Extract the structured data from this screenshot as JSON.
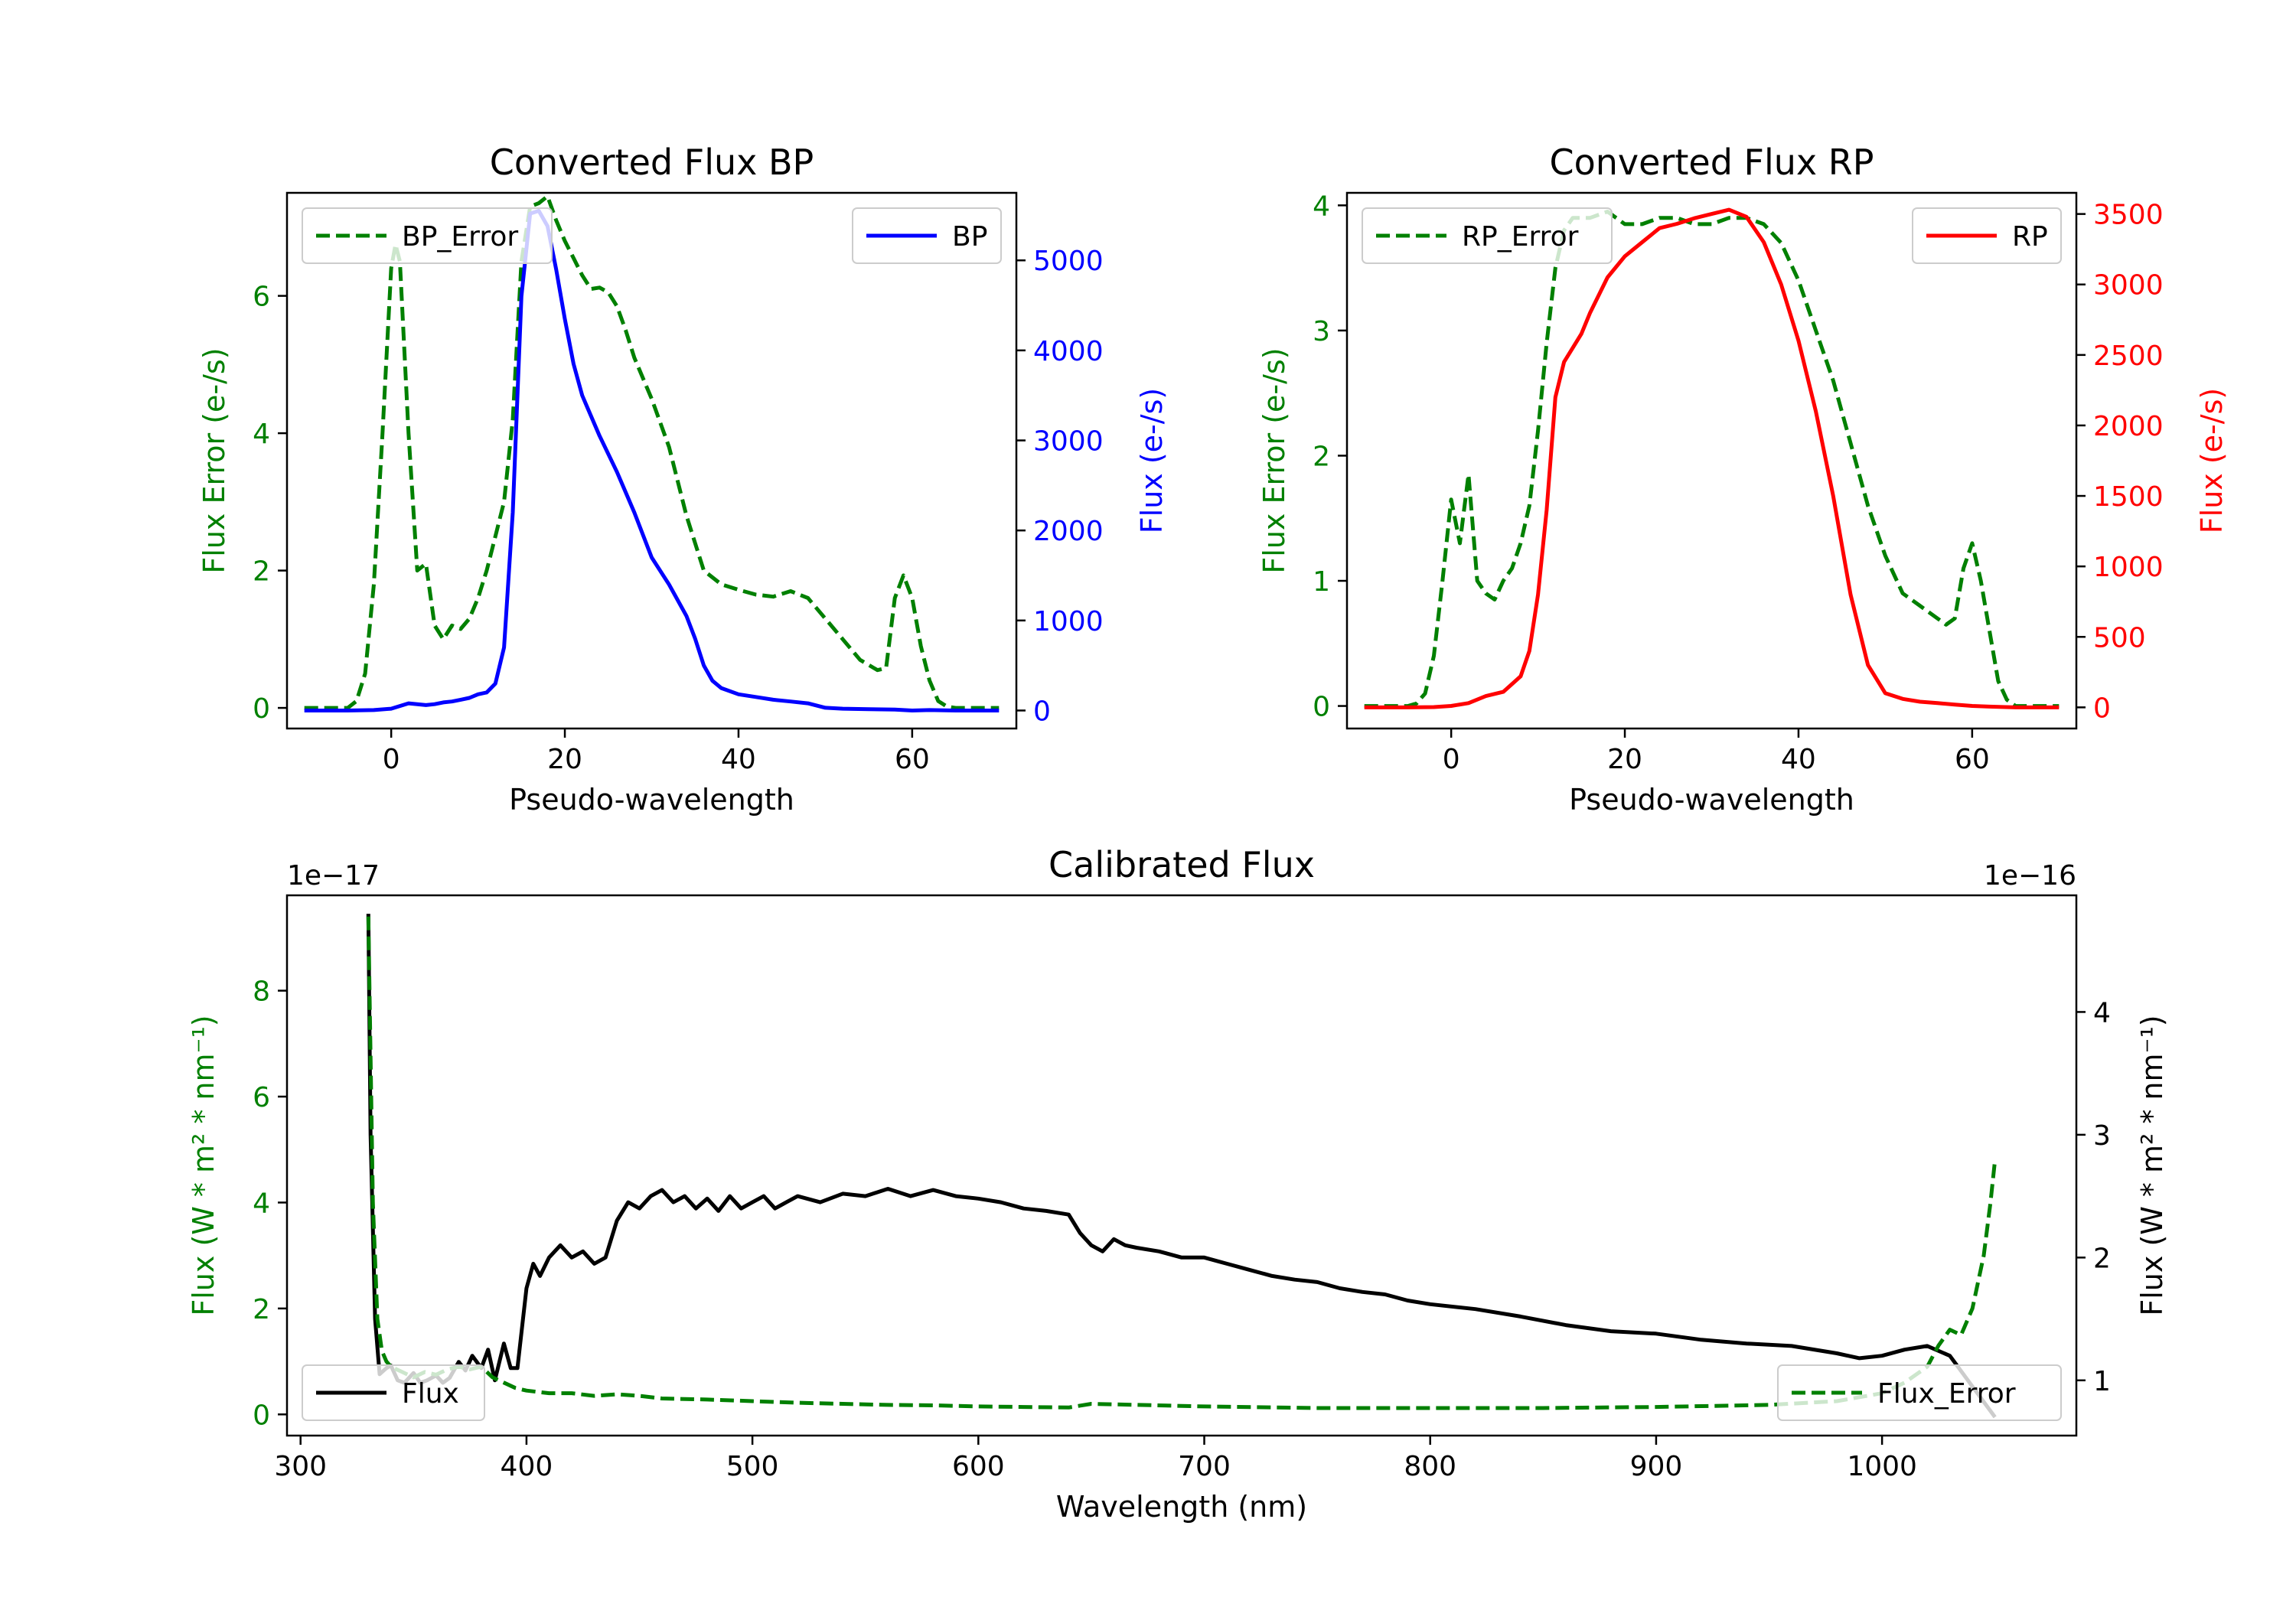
{
  "chart_data": [
    {
      "type": "line",
      "title": "Converted Flux BP",
      "xlabel": "Pseudo-wavelength",
      "ylabel_left": "Flux Error (e-/s)",
      "ylabel_right": "Flux (e-/s)",
      "xlim": [
        -12,
        72
      ],
      "ylim_left": [
        -0.3,
        7.5
      ],
      "ylim_right": [
        -200,
        5750
      ],
      "xticks": [
        0,
        20,
        40,
        60
      ],
      "yticks_left": [
        0,
        2,
        4,
        6
      ],
      "yticks_right": [
        0,
        1000,
        2000,
        3000,
        4000,
        5000
      ],
      "left_color": "#008000",
      "right_color": "#0000ff",
      "series": [
        {
          "name": "BP_Error",
          "axis": "left",
          "style": "dashed",
          "color": "#008000",
          "x": [
            -10,
            -5,
            -4,
            -3,
            -2,
            -1,
            0,
            0.5,
            1,
            2,
            3,
            4,
            5,
            6,
            7,
            8,
            9,
            10,
            11,
            12,
            13,
            14,
            15,
            16,
            17,
            18,
            19,
            20,
            21,
            22,
            23,
            24,
            25,
            26,
            27,
            28,
            30,
            32,
            34,
            36,
            38,
            40,
            42,
            44,
            46,
            48,
            50,
            52,
            54,
            56,
            57,
            58,
            59,
            60,
            61,
            62,
            63,
            64,
            65,
            66,
            67,
            68,
            69,
            70
          ],
          "y": [
            0,
            0,
            0.1,
            0.5,
            1.8,
            4.0,
            6.4,
            6.75,
            6.5,
            4.0,
            2.0,
            2.1,
            1.2,
            1.0,
            1.2,
            1.15,
            1.3,
            1.6,
            2.0,
            2.5,
            3.0,
            4.2,
            6.5,
            7.3,
            7.35,
            7.45,
            7.1,
            6.8,
            6.55,
            6.3,
            6.1,
            6.12,
            6.05,
            5.85,
            5.5,
            5.1,
            4.5,
            3.8,
            2.8,
            2.0,
            1.8,
            1.72,
            1.65,
            1.62,
            1.7,
            1.6,
            1.3,
            1.0,
            0.7,
            0.55,
            0.58,
            1.6,
            1.93,
            1.6,
            0.9,
            0.4,
            0.1,
            0.02,
            0,
            0,
            0,
            0,
            0,
            0
          ]
        },
        {
          "name": "BP",
          "axis": "right",
          "style": "solid",
          "color": "#0000ff",
          "x": [
            -10,
            -5,
            -2,
            0,
            1,
            2,
            3,
            4,
            5,
            6,
            7,
            8,
            9,
            10,
            11,
            12,
            13,
            14,
            15,
            16,
            17,
            18,
            19,
            20,
            21,
            22,
            24,
            26,
            28,
            30,
            32,
            34,
            35,
            36,
            37,
            38,
            40,
            42,
            44,
            46,
            48,
            50,
            52,
            55,
            58,
            60,
            62,
            65,
            68,
            70
          ],
          "y": [
            0,
            0,
            5,
            20,
            50,
            80,
            70,
            60,
            70,
            90,
            100,
            120,
            140,
            180,
            200,
            300,
            700,
            2200,
            4600,
            5520,
            5550,
            5380,
            4900,
            4350,
            3850,
            3500,
            3050,
            2650,
            2200,
            1700,
            1400,
            1050,
            800,
            500,
            330,
            250,
            180,
            150,
            120,
            100,
            80,
            30,
            20,
            15,
            10,
            0,
            5,
            0,
            0,
            0
          ]
        }
      ],
      "legend": [
        {
          "label": "BP_Error",
          "position": "upper left"
        },
        {
          "label": "BP",
          "position": "upper right"
        }
      ]
    },
    {
      "type": "line",
      "title": "Converted Flux RP",
      "xlabel": "Pseudo-wavelength",
      "ylabel_left": "Flux Error (e-/s)",
      "ylabel_right": "Flux (e-/s)",
      "xlim": [
        -12,
        72
      ],
      "ylim_left": [
        -0.18,
        4.1
      ],
      "ylim_right": [
        -150,
        3650
      ],
      "xticks": [
        0,
        20,
        40,
        60
      ],
      "yticks_left": [
        0,
        1,
        2,
        3,
        4
      ],
      "yticks_right": [
        0,
        500,
        1000,
        1500,
        2000,
        2500,
        3000,
        3500
      ],
      "left_color": "#008000",
      "right_color": "#ff0000",
      "series": [
        {
          "name": "RP_Error",
          "axis": "left",
          "style": "dashed",
          "color": "#008000",
          "x": [
            -10,
            -5,
            -4,
            -3,
            -2,
            -1,
            0,
            1,
            2,
            3,
            4,
            5,
            6,
            7,
            8,
            9,
            10,
            11,
            12,
            13,
            14,
            16,
            18,
            20,
            22,
            24,
            26,
            28,
            30,
            32,
            34,
            36,
            38,
            40,
            42,
            44,
            46,
            48,
            50,
            52,
            54,
            56,
            57,
            58,
            59,
            60,
            61,
            62,
            63,
            64,
            65,
            66,
            68,
            70
          ],
          "y": [
            0,
            0,
            0.02,
            0.1,
            0.4,
            1.0,
            1.65,
            1.3,
            1.85,
            1.0,
            0.9,
            0.85,
            1.0,
            1.1,
            1.3,
            1.6,
            2.2,
            2.9,
            3.5,
            3.8,
            3.9,
            3.9,
            3.95,
            3.85,
            3.85,
            3.9,
            3.9,
            3.85,
            3.85,
            3.9,
            3.9,
            3.85,
            3.7,
            3.4,
            3.0,
            2.6,
            2.1,
            1.6,
            1.2,
            0.9,
            0.8,
            0.7,
            0.65,
            0.7,
            1.1,
            1.3,
            1.0,
            0.6,
            0.2,
            0.05,
            0,
            0,
            0,
            0
          ]
        },
        {
          "name": "RP",
          "axis": "right",
          "style": "solid",
          "color": "#ff0000",
          "x": [
            -10,
            -5,
            -2,
            0,
            2,
            4,
            6,
            8,
            9,
            10,
            11,
            12,
            13,
            14,
            15,
            16,
            18,
            20,
            22,
            24,
            26,
            28,
            30,
            32,
            34,
            36,
            38,
            40,
            42,
            44,
            46,
            48,
            50,
            52,
            54,
            56,
            58,
            60,
            62,
            65,
            68,
            70
          ],
          "y": [
            0,
            0,
            2,
            10,
            30,
            80,
            110,
            220,
            400,
            800,
            1400,
            2200,
            2450,
            2550,
            2650,
            2800,
            3050,
            3200,
            3300,
            3400,
            3430,
            3470,
            3500,
            3530,
            3480,
            3300,
            3000,
            2600,
            2100,
            1500,
            800,
            300,
            100,
            60,
            40,
            30,
            20,
            10,
            5,
            0,
            0,
            0
          ]
        }
      ],
      "legend": [
        {
          "label": "RP_Error",
          "position": "upper left"
        },
        {
          "label": "RP",
          "position": "upper right"
        }
      ]
    },
    {
      "type": "line",
      "title": "Calibrated Flux",
      "xlabel": "Wavelength (nm)",
      "ylabel_left": "Flux (W * m² * nm⁻¹)",
      "ylabel_right": "Flux (W * m² * nm⁻¹)",
      "offset_left": "1e−17",
      "offset_right": "1e−16",
      "xlim": [
        294,
        1086
      ],
      "ylim_left": [
        -0.4,
        9.8
      ],
      "ylim_right": [
        0.55,
        4.95
      ],
      "xticks": [
        300,
        400,
        500,
        600,
        700,
        800,
        900,
        1000
      ],
      "yticks_left": [
        0,
        2,
        4,
        6,
        8
      ],
      "yticks_right": [
        1,
        2,
        3,
        4
      ],
      "left_color": "#008000",
      "right_color": "#000000",
      "series": [
        {
          "name": "Flux_Error",
          "axis": "left",
          "style": "dashed",
          "color": "#008000",
          "x": [
            330,
            332,
            334,
            336,
            338,
            340,
            345,
            350,
            355,
            360,
            365,
            370,
            375,
            380,
            385,
            390,
            395,
            400,
            410,
            420,
            430,
            440,
            450,
            460,
            480,
            500,
            520,
            540,
            560,
            580,
            600,
            620,
            640,
            650,
            700,
            750,
            800,
            850,
            900,
            950,
            980,
            1000,
            1010,
            1020,
            1025,
            1030,
            1035,
            1040,
            1045,
            1048,
            1050
          ],
          "y": [
            9.4,
            4.0,
            1.8,
            1.2,
            1.0,
            0.9,
            0.8,
            0.7,
            0.8,
            0.75,
            0.85,
            0.9,
            0.85,
            0.9,
            0.7,
            0.6,
            0.5,
            0.45,
            0.4,
            0.4,
            0.35,
            0.38,
            0.35,
            0.3,
            0.28,
            0.25,
            0.22,
            0.2,
            0.18,
            0.17,
            0.15,
            0.14,
            0.13,
            0.2,
            0.15,
            0.12,
            0.12,
            0.12,
            0.14,
            0.18,
            0.25,
            0.4,
            0.6,
            0.9,
            1.3,
            1.6,
            1.5,
            2.0,
            3.0,
            4.0,
            4.8
          ]
        },
        {
          "name": "Flux",
          "axis": "right",
          "style": "solid",
          "color": "#000000",
          "x": [
            330,
            331,
            333,
            335,
            338,
            340,
            343,
            346,
            350,
            353,
            356,
            360,
            363,
            366,
            370,
            373,
            376,
            380,
            383,
            386,
            390,
            393,
            396,
            400,
            403,
            406,
            410,
            415,
            420,
            425,
            430,
            435,
            440,
            445,
            450,
            455,
            460,
            465,
            470,
            475,
            480,
            485,
            490,
            495,
            500,
            505,
            510,
            515,
            520,
            530,
            540,
            550,
            560,
            570,
            580,
            590,
            600,
            610,
            620,
            630,
            640,
            645,
            650,
            655,
            660,
            665,
            670,
            680,
            690,
            700,
            710,
            720,
            730,
            740,
            750,
            760,
            770,
            780,
            790,
            800,
            820,
            840,
            860,
            880,
            900,
            920,
            940,
            960,
            980,
            990,
            1000,
            1010,
            1020,
            1030,
            1040,
            1050
          ],
          "y": [
            4.8,
            3.0,
            1.5,
            1.05,
            1.1,
            1.12,
            1.0,
            0.98,
            1.06,
            0.98,
            1.0,
            1.04,
            0.98,
            1.02,
            1.15,
            1.08,
            1.2,
            1.1,
            1.25,
            1.0,
            1.3,
            1.1,
            1.1,
            1.75,
            1.95,
            1.85,
            2.0,
            2.1,
            2.0,
            2.05,
            1.95,
            2.0,
            2.3,
            2.45,
            2.4,
            2.5,
            2.55,
            2.45,
            2.5,
            2.4,
            2.48,
            2.38,
            2.5,
            2.4,
            2.45,
            2.5,
            2.4,
            2.45,
            2.5,
            2.45,
            2.52,
            2.5,
            2.56,
            2.5,
            2.55,
            2.5,
            2.48,
            2.45,
            2.4,
            2.38,
            2.35,
            2.2,
            2.1,
            2.05,
            2.15,
            2.1,
            2.08,
            2.05,
            2.0,
            2.0,
            1.95,
            1.9,
            1.85,
            1.82,
            1.8,
            1.75,
            1.72,
            1.7,
            1.65,
            1.62,
            1.58,
            1.52,
            1.45,
            1.4,
            1.38,
            1.33,
            1.3,
            1.28,
            1.22,
            1.18,
            1.2,
            1.25,
            1.28,
            1.2,
            0.95,
            0.7
          ]
        }
      ],
      "legend": [
        {
          "label": "Flux",
          "position": "lower left"
        },
        {
          "label": "Flux_Error",
          "position": "lower right"
        }
      ]
    }
  ]
}
